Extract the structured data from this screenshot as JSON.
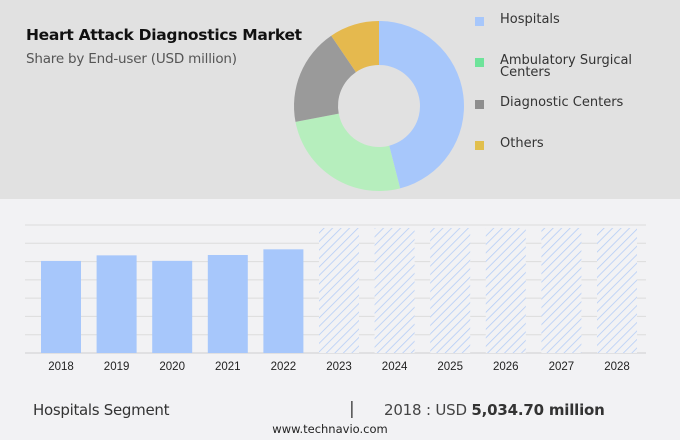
{
  "header": {
    "title": "Heart Attack Diagnostics Market",
    "subtitle": "Share by End-user (USD million)"
  },
  "legend": [
    {
      "label": "Hospitals",
      "color": "#a7c7fb"
    },
    {
      "label": "Ambulatory Surgical\nCenters",
      "color": "#b6eebd"
    },
    {
      "label": "Diagnostic Centers",
      "color": "#9a9a9a"
    },
    {
      "label": "Others",
      "color": "#e5b94e"
    }
  ],
  "legend_swatch_colors": [
    "#a7c7fb",
    "#6ee39a",
    "#8e8e8e",
    "#e1bf4d"
  ],
  "footer": {
    "segment": "Hospitals Segment",
    "separator": "|",
    "year_prefix": "2018 : USD ",
    "value": "5,034.70 million",
    "website": "www.technavio.com"
  },
  "chart_data": [
    {
      "type": "pie",
      "subtype": "donut",
      "title": "Heart Attack Diagnostics Market",
      "subtitle": "Share by End-user (USD million)",
      "categories": [
        "Hospitals",
        "Ambulatory Surgical Centers",
        "Diagnostic Centers",
        "Others"
      ],
      "values": [
        46,
        26,
        18.5,
        9.5
      ],
      "colors": [
        "#a7c7fb",
        "#b6eebd",
        "#9a9a9a",
        "#e5b94e"
      ],
      "legend_position": "right"
    },
    {
      "type": "bar",
      "title": "Hospitals Segment",
      "categories": [
        "2018",
        "2019",
        "2020",
        "2021",
        "2022",
        "2023",
        "2024",
        "2025",
        "2026",
        "2027",
        "2028"
      ],
      "values": [
        5034.7,
        5340,
        5040,
        5360,
        5670,
        null,
        null,
        null,
        null,
        null,
        null
      ],
      "forecast_years": [
        "2023",
        "2024",
        "2025",
        "2026",
        "2027",
        "2028"
      ],
      "forecast_style": "hatched",
      "xlabel": "",
      "ylabel": "",
      "ylim": [
        0,
        7000
      ],
      "grid": true,
      "color": "#a7c7fb"
    }
  ]
}
